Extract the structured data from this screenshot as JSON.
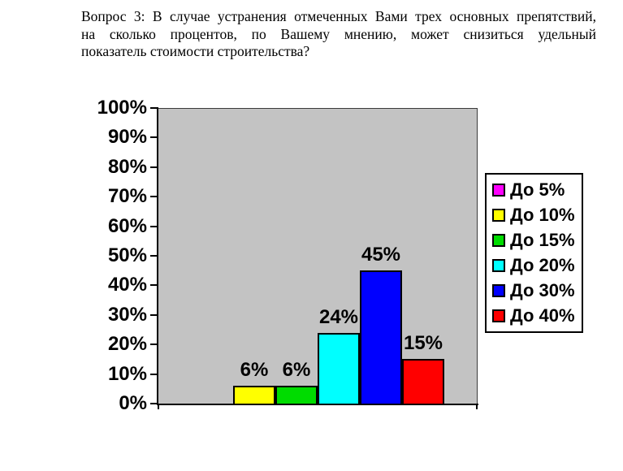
{
  "title": {
    "lines": [
      "Вопрос 3: В случае устранения отмеченных Вами трех основных препятствий,",
      "на сколько процентов, по Вашему мнению, может снизиться удельный",
      "показатель стоимости строительства?"
    ]
  },
  "chart_data": {
    "type": "bar",
    "title": "Вопрос 3: В случае устранения отмеченных Вами трех основных препятствий, на сколько процентов, по Вашему мнению, может снизиться удельный показатель стоимости строительства?",
    "categories": [
      ""
    ],
    "series": [
      {
        "name": "До 5%",
        "value": 0,
        "color": "#ff00ff",
        "data_label": ""
      },
      {
        "name": "До 10%",
        "value": 6,
        "color": "#ffff00",
        "data_label": "6%"
      },
      {
        "name": "До 15%",
        "value": 6,
        "color": "#00dc00",
        "data_label": "6%"
      },
      {
        "name": "До 20%",
        "value": 24,
        "color": "#00ffff",
        "data_label": "24%"
      },
      {
        "name": "До 30%",
        "value": 45,
        "color": "#0000ff",
        "data_label": "45%"
      },
      {
        "name": "До 40%",
        "value": 15,
        "color": "#ff0000",
        "data_label": "15%"
      }
    ],
    "xlabel": "",
    "ylabel": "",
    "ylim": [
      0,
      100
    ],
    "ytick_labels": [
      "0%",
      "10%",
      "20%",
      "30%",
      "40%",
      "50%",
      "60%",
      "70%",
      "80%",
      "90%",
      "100%"
    ],
    "grid": false,
    "legend_position": "right",
    "plot_background": "#c3c3c3",
    "axis_color": "#000000"
  }
}
